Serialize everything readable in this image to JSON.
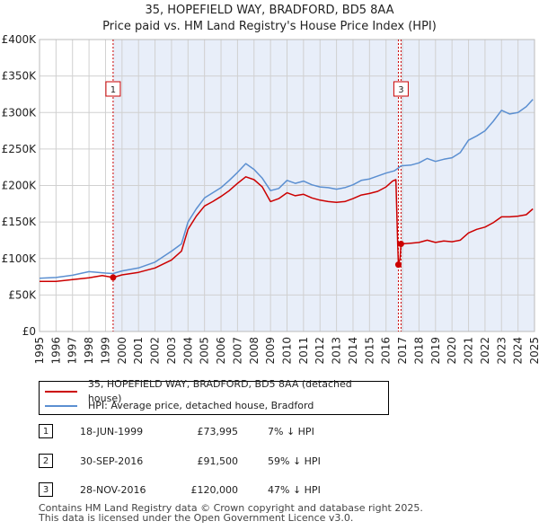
{
  "title_line1": "35, HOPEFIELD WAY, BRADFORD, BD5 8AA",
  "title_line2": "Price paid vs. HM Land Registry's House Price Index (HPI)",
  "chart_data": {
    "type": "line",
    "title": "35, HOPEFIELD WAY, BRADFORD, BD5 8AA — Price paid vs. HM Land Registry's House Price Index (HPI)",
    "xlabel": "",
    "ylabel": "",
    "xlim": [
      1995,
      2025
    ],
    "ylim": [
      0,
      400000
    ],
    "y_ticks": [
      {
        "value": 0,
        "label": "£0"
      },
      {
        "value": 50000,
        "label": "£50K"
      },
      {
        "value": 100000,
        "label": "£100K"
      },
      {
        "value": 150000,
        "label": "£150K"
      },
      {
        "value": 200000,
        "label": "£200K"
      },
      {
        "value": 250000,
        "label": "£250K"
      },
      {
        "value": 300000,
        "label": "£300K"
      },
      {
        "value": 350000,
        "label": "£350K"
      },
      {
        "value": 400000,
        "label": "£400K"
      }
    ],
    "x_ticks": [
      "1995",
      "1996",
      "1997",
      "1998",
      "1999",
      "2000",
      "2001",
      "2002",
      "2003",
      "2004",
      "2005",
      "2006",
      "2007",
      "2008",
      "2009",
      "2010",
      "2011",
      "2012",
      "2013",
      "2014",
      "2015",
      "2016",
      "2017",
      "2018",
      "2019",
      "2020",
      "2021",
      "2022",
      "2023",
      "2024",
      "2025"
    ],
    "grid": true,
    "series": [
      {
        "name": "35, HOPEFIELD WAY, BRADFORD, BD5 8AA (detached house)",
        "color": "#cc0000",
        "points": [
          [
            1995.0,
            68500
          ],
          [
            1996.0,
            68500
          ],
          [
            1997.0,
            71000
          ],
          [
            1998.0,
            73500
          ],
          [
            1998.8,
            76500
          ],
          [
            1999.46,
            73995
          ],
          [
            2000.0,
            77500
          ],
          [
            2001.0,
            81000
          ],
          [
            2002.0,
            87000
          ],
          [
            2003.0,
            98000
          ],
          [
            2003.6,
            110000
          ],
          [
            2004.0,
            140000
          ],
          [
            2004.5,
            158000
          ],
          [
            2005.0,
            172000
          ],
          [
            2005.5,
            178000
          ],
          [
            2006.0,
            185000
          ],
          [
            2006.5,
            193000
          ],
          [
            2007.0,
            203000
          ],
          [
            2007.5,
            212000
          ],
          [
            2008.0,
            208000
          ],
          [
            2008.5,
            198000
          ],
          [
            2009.0,
            178000
          ],
          [
            2009.5,
            182000
          ],
          [
            2010.0,
            190000
          ],
          [
            2010.5,
            186000
          ],
          [
            2011.0,
            188000
          ],
          [
            2011.5,
            183000
          ],
          [
            2012.0,
            180000
          ],
          [
            2012.5,
            178000
          ],
          [
            2013.0,
            177000
          ],
          [
            2013.5,
            178000
          ],
          [
            2014.0,
            182000
          ],
          [
            2014.5,
            187000
          ],
          [
            2015.0,
            189000
          ],
          [
            2015.5,
            192000
          ],
          [
            2016.0,
            198000
          ],
          [
            2016.4,
            206000
          ],
          [
            2016.6,
            208000
          ],
          [
            2016.71,
            120000
          ],
          [
            2016.75,
            91500
          ],
          [
            2016.85,
            100000
          ],
          [
            2016.91,
            120000
          ],
          [
            2017.5,
            121000
          ],
          [
            2018.0,
            122000
          ],
          [
            2018.5,
            125000
          ],
          [
            2019.0,
            122000
          ],
          [
            2019.5,
            124000
          ],
          [
            2020.0,
            123000
          ],
          [
            2020.5,
            125000
          ],
          [
            2021.0,
            135000
          ],
          [
            2021.5,
            140000
          ],
          [
            2022.0,
            143000
          ],
          [
            2022.5,
            149000
          ],
          [
            2023.0,
            157000
          ],
          [
            2023.5,
            157000
          ],
          [
            2024.0,
            158000
          ],
          [
            2024.5,
            160000
          ],
          [
            2024.9,
            168000
          ]
        ]
      },
      {
        "name": "HPI: Average price, detached house, Bradford",
        "color": "#5b8fd1",
        "points": [
          [
            1995.0,
            73000
          ],
          [
            1996.0,
            74000
          ],
          [
            1997.0,
            77000
          ],
          [
            1998.0,
            82000
          ],
          [
            1999.0,
            80000
          ],
          [
            1999.46,
            79400
          ],
          [
            2000.0,
            83000
          ],
          [
            2001.0,
            87000
          ],
          [
            2002.0,
            95000
          ],
          [
            2003.0,
            110000
          ],
          [
            2003.6,
            120000
          ],
          [
            2004.0,
            150000
          ],
          [
            2004.5,
            168000
          ],
          [
            2005.0,
            183000
          ],
          [
            2005.5,
            190000
          ],
          [
            2006.0,
            197000
          ],
          [
            2006.5,
            207000
          ],
          [
            2007.0,
            218000
          ],
          [
            2007.5,
            230000
          ],
          [
            2008.0,
            222000
          ],
          [
            2008.5,
            210000
          ],
          [
            2009.0,
            193000
          ],
          [
            2009.5,
            196000
          ],
          [
            2010.0,
            207000
          ],
          [
            2010.5,
            203000
          ],
          [
            2011.0,
            206000
          ],
          [
            2011.5,
            201000
          ],
          [
            2012.0,
            198000
          ],
          [
            2012.5,
            197000
          ],
          [
            2013.0,
            195000
          ],
          [
            2013.5,
            197000
          ],
          [
            2014.0,
            201000
          ],
          [
            2014.5,
            207000
          ],
          [
            2015.0,
            209000
          ],
          [
            2015.5,
            213000
          ],
          [
            2016.0,
            217000
          ],
          [
            2016.5,
            220000
          ],
          [
            2016.75,
            224000
          ],
          [
            2016.91,
            227000
          ],
          [
            2017.5,
            228000
          ],
          [
            2018.0,
            231000
          ],
          [
            2018.5,
            237000
          ],
          [
            2019.0,
            233000
          ],
          [
            2019.5,
            236000
          ],
          [
            2020.0,
            238000
          ],
          [
            2020.5,
            245000
          ],
          [
            2021.0,
            262000
          ],
          [
            2021.5,
            268000
          ],
          [
            2022.0,
            275000
          ],
          [
            2022.5,
            288000
          ],
          [
            2023.0,
            303000
          ],
          [
            2023.5,
            298000
          ],
          [
            2024.0,
            300000
          ],
          [
            2024.5,
            308000
          ],
          [
            2024.9,
            318000
          ]
        ]
      }
    ],
    "sales": [
      {
        "id": "1",
        "date": "18-JUN-1999",
        "x": 1999.46,
        "price": 73995,
        "price_label": "£73,995",
        "hpi_diff": "7% ↓ HPI"
      },
      {
        "id": "2",
        "date": "30-SEP-2016",
        "x": 2016.75,
        "price": 91500,
        "price_label": "£91,500",
        "hpi_diff": "59% ↓ HPI"
      },
      {
        "id": "3",
        "date": "28-NOV-2016",
        "x": 2016.91,
        "price": 120000,
        "price_label": "£120,000",
        "hpi_diff": "47% ↓ HPI"
      }
    ],
    "marker_labels": [
      {
        "id": "1",
        "x": 1999.46
      },
      {
        "id": "3",
        "x": 2016.91
      }
    ],
    "shaded_ranges": [
      [
        1999.46,
        2016.75
      ],
      [
        2016.91,
        2025.0
      ]
    ]
  },
  "legend": {
    "property_label": "35, HOPEFIELD WAY, BRADFORD, BD5 8AA (detached house)",
    "hpi_label": "HPI: Average price, detached house, Bradford",
    "property_color": "#cc0000",
    "hpi_color": "#5b8fd1"
  },
  "footer": {
    "line1": "Contains HM Land Registry data © Crown copyright and database right 2025.",
    "line2": "This data is licensed under the Open Government Licence v3.0."
  }
}
